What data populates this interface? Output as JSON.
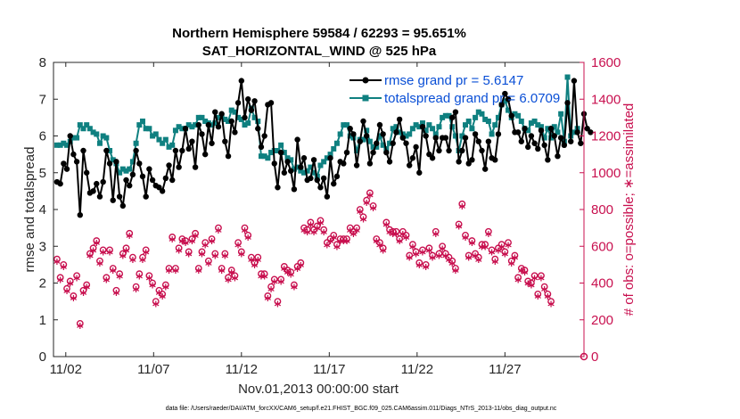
{
  "title_line1": "Northern Hemisphere 59584 / 62293 = 95.651%",
  "title_line2": "SAT_HORIZONTAL_WIND @ 525 hPa",
  "footer": "data file: /Users/raeder/DAI/ATM_forcXX/CAM6_setup/f.e21.FHIST_BGC.f09_025.CAM6assim.011/Diags_NTrS_2013-11/obs_diag_output.nc",
  "colors": {
    "rmse": "#000000",
    "spread": "#0f8080",
    "obs": "#c8104f",
    "legend_text": "#0a4fd6"
  },
  "chart_data": {
    "type": "line",
    "xlabel": "Nov.01,2013 00:00:00 start",
    "ylabel": "rmse and totalspread",
    "y2label": "# of obs: o=possible; ∗=assimilated",
    "xlim": [
      0.3,
      30.5
    ],
    "ylim": [
      0,
      8
    ],
    "y2lim": [
      0,
      1600
    ],
    "x_ticks": [
      1,
      6,
      11,
      16,
      21,
      26
    ],
    "x_tick_labels": [
      "11/02",
      "11/07",
      "11/12",
      "11/17",
      "11/22",
      "11/27"
    ],
    "y_ticks": [
      0,
      1,
      2,
      3,
      4,
      5,
      6,
      7,
      8
    ],
    "y2_ticks": [
      0,
      200,
      400,
      600,
      800,
      1000,
      1200,
      1400,
      1600
    ],
    "legend_position": "top-right",
    "grid": false,
    "series": [
      {
        "name": "rmse grand pr = 5.6147",
        "axis": "left",
        "style": "line-dot",
        "values": [
          4.75,
          4.7,
          5.25,
          5.1,
          6.0,
          5.5,
          5.3,
          3.85,
          5.6,
          5.0,
          4.45,
          4.5,
          4.7,
          4.35,
          4.75,
          5.6,
          5.25,
          4.25,
          5.3,
          4.35,
          4.1,
          4.8,
          4.65,
          4.95,
          5.6,
          5.25,
          4.9,
          4.35,
          5.1,
          4.8,
          4.65,
          4.6,
          4.5,
          4.85,
          5.2,
          4.8,
          5.6,
          5.15,
          5.6,
          6.2,
          5.65,
          5.85,
          5.15,
          6.3,
          6.05,
          5.5,
          6.3,
          5.8,
          6.65,
          6.25,
          6.6,
          5.85,
          5.45,
          6.4,
          6.1,
          6.9,
          7.5,
          6.5,
          7.0,
          6.7,
          6.95,
          6.2,
          5.7,
          6.0,
          6.85,
          6.9,
          5.25,
          4.6,
          5.55,
          5.0,
          5.3,
          5.05,
          4.55,
          5.9,
          5.15,
          5.4,
          4.8,
          4.85,
          5.35,
          4.8,
          4.6,
          4.85,
          4.35,
          5.4,
          4.7,
          4.9,
          5.3,
          5.25,
          5.55,
          6.2,
          6.05,
          5.2,
          5.85,
          6.4,
          6.0,
          5.25,
          5.55,
          5.8,
          6.3,
          6.05,
          5.55,
          5.3,
          5.8,
          6.1,
          6.45,
          5.95,
          5.8,
          5.2,
          5.4,
          5.7,
          5.0,
          6.25,
          6.0,
          5.5,
          5.4,
          5.95,
          5.6,
          5.95,
          5.95,
          5.6,
          6.5,
          6.65,
          5.3,
          5.6,
          5.95,
          5.25,
          5.35,
          6.05,
          5.85,
          5.6,
          5.1,
          5.85,
          5.4,
          5.35,
          6.05,
          6.85,
          7.15,
          7.0,
          6.55,
          6.1,
          6.1,
          5.85,
          6.2,
          5.7,
          6.0,
          5.8,
          5.65,
          6.15,
          5.75,
          5.35,
          6.2,
          6.0,
          5.45,
          5.95,
          5.75,
          6.9,
          5.85,
          7.5,
          6.1,
          5.8,
          6.6,
          6.2,
          6.1
        ],
        "x_start": 0.5,
        "x_step": 0.1875
      },
      {
        "name": "totalspread grand pr = 6.0709",
        "axis": "left",
        "style": "line-square",
        "values": [
          5.75,
          5.75,
          5.8,
          5.75,
          5.85,
          5.95,
          5.95,
          6.3,
          6.2,
          6.3,
          6.2,
          6.1,
          6.05,
          5.8,
          6.0,
          5.95,
          5.6,
          5.35,
          5.25,
          5.0,
          5.1,
          5.05,
          5.1,
          5.3,
          5.8,
          6.3,
          6.4,
          6.2,
          6.2,
          6.0,
          6.05,
          5.9,
          5.8,
          5.9,
          5.7,
          5.75,
          6.15,
          6.25,
          6.2,
          6.2,
          6.3,
          6.25,
          6.3,
          6.5,
          6.5,
          6.4,
          6.35,
          6.3,
          6.35,
          6.5,
          6.55,
          6.45,
          6.4,
          6.7,
          6.65,
          6.5,
          6.45,
          6.3,
          6.35,
          6.75,
          6.5,
          6.4,
          5.45,
          5.45,
          5.4,
          5.55,
          5.6,
          5.6,
          5.75,
          5.55,
          5.4,
          5.35,
          5.1,
          5.15,
          5.05,
          5.0,
          5.05,
          5.15,
          5.0,
          4.9,
          5.2,
          5.3,
          5.4,
          5.5,
          5.65,
          5.8,
          6.05,
          6.3,
          6.3,
          6.0,
          5.95,
          5.6,
          5.9,
          5.9,
          6.15,
          5.85,
          5.7,
          5.7,
          6.0,
          5.75,
          5.65,
          5.8,
          6.2,
          6.25,
          6.1,
          6.05,
          6.0,
          6.05,
          6.2,
          6.3,
          6.25,
          6.35,
          6.15,
          6.3,
          6.2,
          6.05,
          6.25,
          6.5,
          6.55,
          6.55,
          6.25,
          6.0,
          5.6,
          6.0,
          6.3,
          6.4,
          6.2,
          6.5,
          6.65,
          6.6,
          6.45,
          6.4,
          6.05,
          6.3,
          6.5,
          6.85,
          6.95,
          6.7,
          6.5,
          6.6,
          6.55,
          6.4,
          6.2,
          6.15,
          6.35,
          6.4,
          6.3,
          6.25,
          5.95,
          6.2,
          5.95,
          6.25,
          6.1,
          6.6,
          5.85,
          7.6,
          6.0,
          6.1,
          6.2
        ],
        "x_start": 0.5,
        "x_step": 0.1875
      },
      {
        "name": "possible",
        "axis": "right",
        "style": "marker-circle",
        "values": [
          530,
          430,
          500,
          370,
          410,
          330,
          440,
          180,
          360,
          390,
          560,
          590,
          630,
          520,
          580,
          430,
          580,
          480,
          360,
          450,
          560,
          590,
          670,
          540,
          380,
          450,
          540,
          580,
          440,
          400,
          300,
          360,
          340,
          390,
          480,
          650,
          480,
          590,
          640,
          630,
          570,
          640,
          670,
          480,
          570,
          620,
          520,
          640,
          560,
          700,
          480,
          560,
          430,
          470,
          440,
          620,
          570,
          700,
          660,
          540,
          510,
          540,
          450,
          450,
          330,
          380,
          420,
          300,
          420,
          490,
          470,
          460,
          390,
          490,
          510,
          700,
          690,
          730,
          690,
          710,
          740,
          690,
          620,
          640,
          660,
          610,
          640,
          640,
          640,
          700,
          680,
          700,
          800,
          760,
          850,
          890,
          820,
          640,
          620,
          590,
          730,
          690,
          680,
          680,
          640,
          680,
          660,
          550,
          610,
          570,
          510,
          580,
          500,
          590,
          550,
          680,
          560,
          600,
          560,
          540,
          520,
          480,
          720,
          830,
          660,
          550,
          630,
          560,
          540,
          610,
          610,
          680,
          580,
          530,
          590,
          610,
          570,
          620,
          520,
          550,
          430,
          480,
          470,
          410,
          400,
          440,
          340,
          440,
          380,
          340,
          300
        ],
        "x_start": 0.5,
        "x_step": 0.1875
      },
      {
        "name": "assimilated",
        "axis": "right",
        "style": "marker-asterisk",
        "values": [
          510,
          410,
          480,
          350,
          390,
          310,
          420,
          160,
          340,
          370,
          540,
          570,
          610,
          500,
          560,
          410,
          560,
          460,
          340,
          430,
          540,
          570,
          650,
          520,
          360,
          430,
          520,
          560,
          420,
          380,
          280,
          340,
          320,
          370,
          460,
          630,
          460,
          570,
          620,
          610,
          550,
          620,
          650,
          460,
          550,
          600,
          500,
          620,
          540,
          680,
          460,
          540,
          410,
          450,
          420,
          600,
          550,
          680,
          640,
          520,
          490,
          520,
          430,
          430,
          310,
          360,
          400,
          280,
          400,
          470,
          450,
          440,
          370,
          470,
          490,
          680,
          670,
          710,
          670,
          690,
          720,
          670,
          600,
          620,
          640,
          590,
          620,
          620,
          620,
          680,
          660,
          680,
          780,
          740,
          830,
          870,
          800,
          620,
          600,
          570,
          710,
          670,
          660,
          660,
          620,
          660,
          640,
          530,
          590,
          550,
          490,
          560,
          480,
          570,
          530,
          660,
          540,
          580,
          540,
          520,
          500,
          460,
          700,
          810,
          640,
          530,
          610,
          540,
          520,
          590,
          590,
          660,
          560,
          510,
          570,
          590,
          550,
          600,
          500,
          530,
          410,
          460,
          450,
          390,
          380,
          420,
          320,
          420,
          360,
          320,
          280
        ],
        "x_start": 0.5,
        "x_step": 0.1875
      }
    ]
  }
}
